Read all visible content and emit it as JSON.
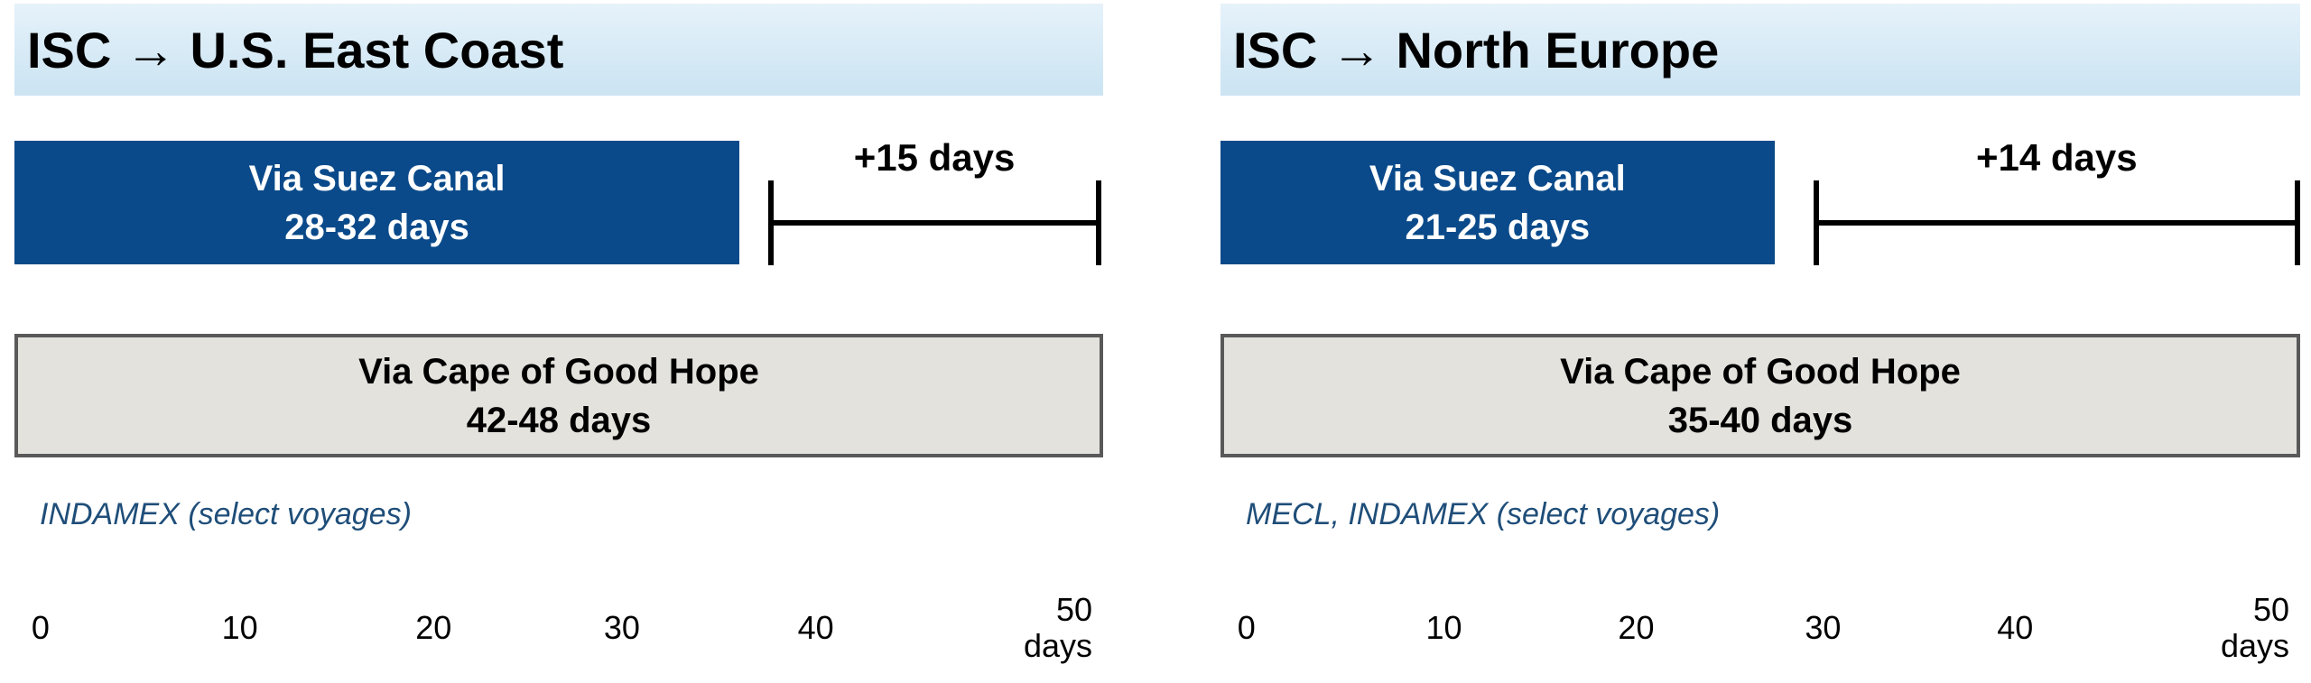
{
  "colors": {
    "header_bg_top": "#E6F2FA",
    "header_bg_bottom": "#CDE5F3",
    "title_text": "#000000",
    "suez_bar": "#0A4A8A",
    "suez_text": "#FFFFFF",
    "cape_bar_fill": "#E3E2DD",
    "cape_bar_border": "#595959",
    "bracket": "#000000",
    "note_text": "#1F4E79"
  },
  "panels": [
    {
      "title": "ISC → U.S. East Coast",
      "suez": {
        "route": "Via Suez Canal",
        "duration": "28-32 days"
      },
      "delta_label": "+15 days",
      "cape": {
        "route": "Via Cape of Good Hope",
        "duration": "42-48 days"
      },
      "note": "INDAMEX (select voyages)",
      "axis": {
        "ticks": [
          "0",
          "10",
          "20",
          "30",
          "40"
        ],
        "end_value": "50",
        "unit": "days"
      }
    },
    {
      "title": "ISC → North Europe",
      "suez": {
        "route": "Via Suez Canal",
        "duration": "21-25 days"
      },
      "delta_label": "+14 days",
      "cape": {
        "route": "Via Cape of Good Hope",
        "duration": "35-40 days"
      },
      "note": "MECL, INDAMEX (select voyages)",
      "axis": {
        "ticks": [
          "0",
          "10",
          "20",
          "30",
          "40"
        ],
        "end_value": "50",
        "unit": "days"
      }
    }
  ],
  "chart_data": [
    {
      "type": "bar",
      "orientation": "horizontal",
      "title": "ISC → U.S. East Coast",
      "xlabel": "days",
      "xlim": [
        0,
        50
      ],
      "x_ticks": [
        0,
        10,
        20,
        30,
        40,
        50
      ],
      "grid": false,
      "bars": [
        {
          "label": "Via Suez Canal",
          "min_days": 28,
          "max_days": 32,
          "color": "#0A4A8A"
        },
        {
          "label": "Via Cape of Good Hope",
          "min_days": 42,
          "max_days": 48,
          "color": "#E3E2DD"
        }
      ],
      "delta": {
        "label": "+15 days",
        "value_days": 15
      },
      "annotation": "INDAMEX (select voyages)"
    },
    {
      "type": "bar",
      "orientation": "horizontal",
      "title": "ISC → North Europe",
      "xlabel": "days",
      "xlim": [
        0,
        50
      ],
      "x_ticks": [
        0,
        10,
        20,
        30,
        40,
        50
      ],
      "grid": false,
      "bars": [
        {
          "label": "Via Suez Canal",
          "min_days": 21,
          "max_days": 25,
          "color": "#0A4A8A"
        },
        {
          "label": "Via Cape of Good Hope",
          "min_days": 35,
          "max_days": 40,
          "color": "#E3E2DD"
        }
      ],
      "delta": {
        "label": "+14 days",
        "value_days": 14
      },
      "annotation": "MECL, INDAMEX (select voyages)"
    }
  ]
}
